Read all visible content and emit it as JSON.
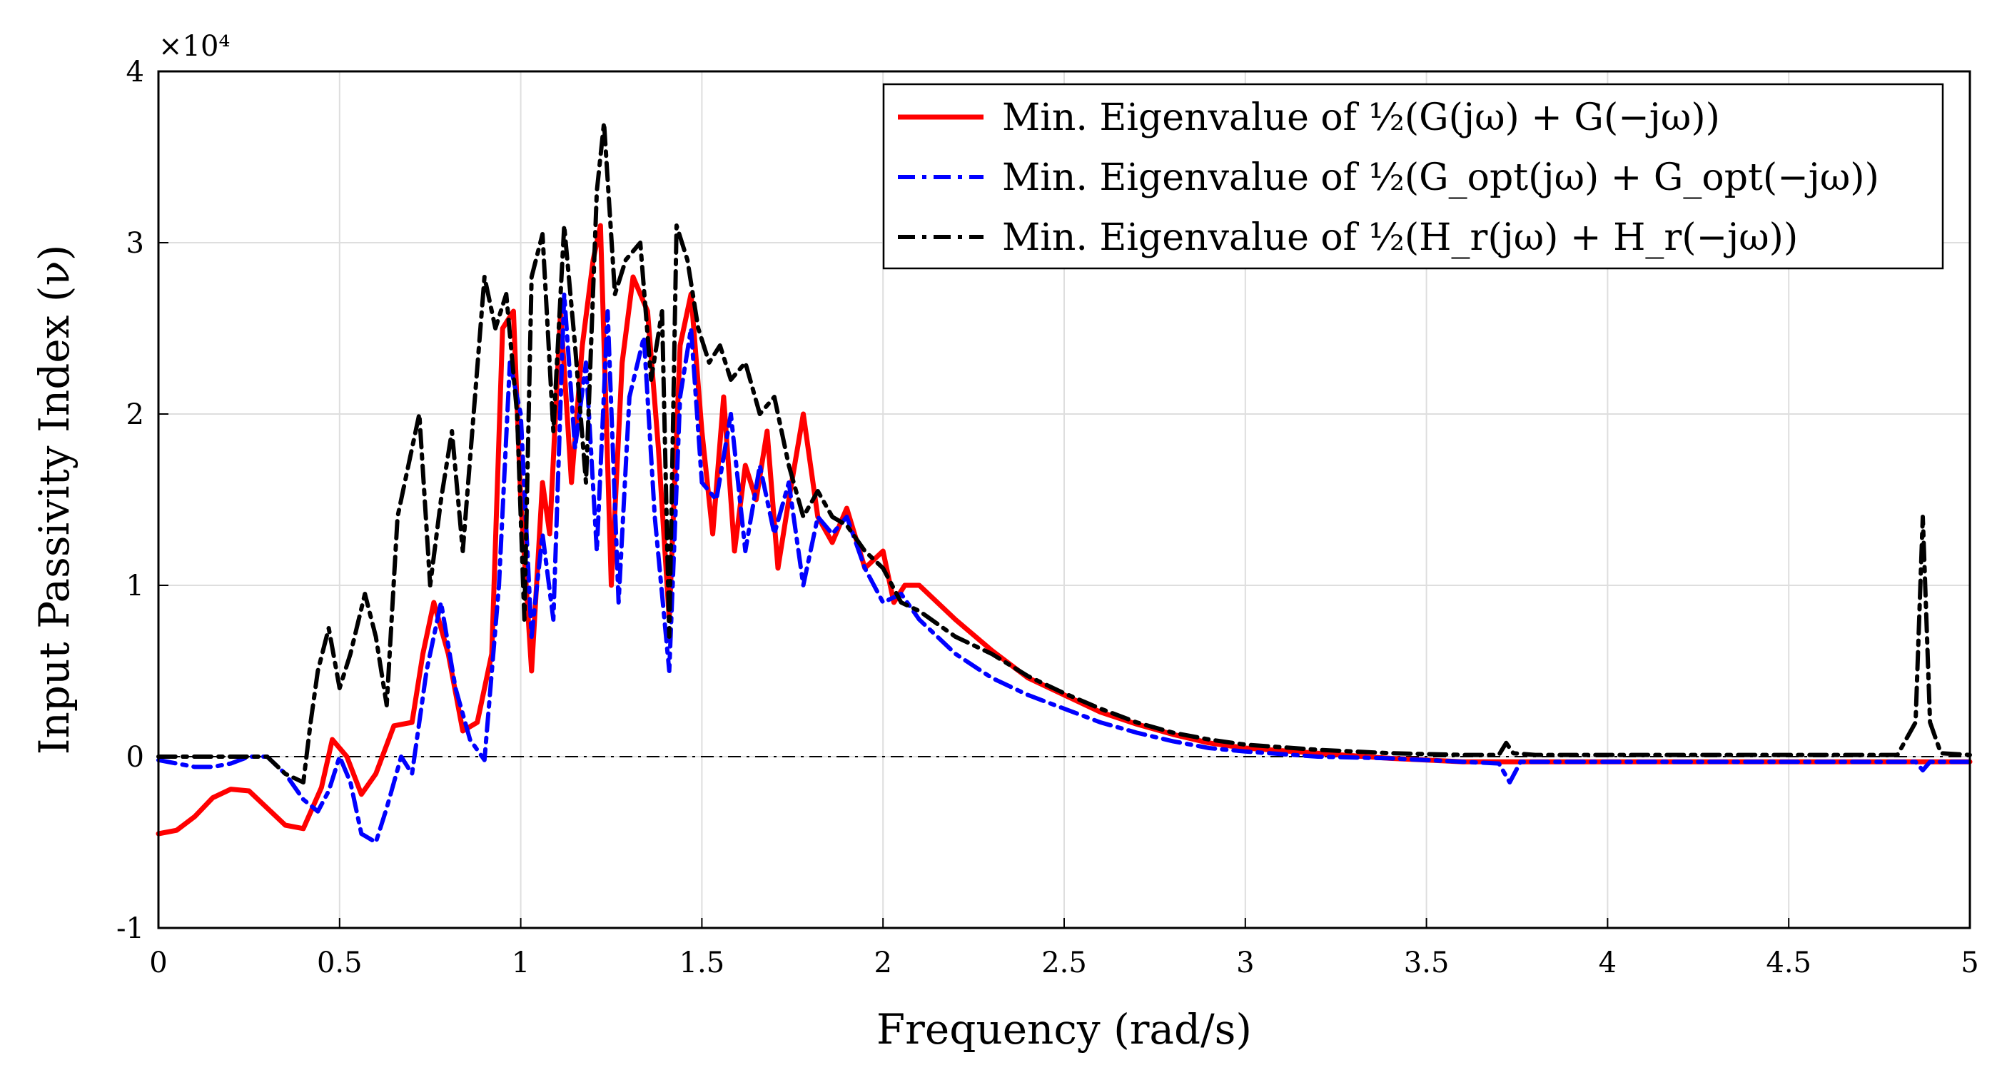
{
  "chart_data": {
    "type": "line",
    "xlabel": "Frequency (rad/s)",
    "ylabel": "Input Passivity Index (ν)",
    "y_multiplier": "×10⁴",
    "xlim": [
      0,
      5
    ],
    "ylim": [
      -1,
      4
    ],
    "x_ticks": [
      0,
      0.5,
      1,
      1.5,
      2,
      2.5,
      3,
      3.5,
      4,
      4.5,
      5
    ],
    "x_tick_labels": [
      "0",
      "0.5",
      "1",
      "1.5",
      "2",
      "2.5",
      "3",
      "3.5",
      "4",
      "4.5",
      "5"
    ],
    "y_ticks": [
      -1,
      0,
      1,
      2,
      3,
      4
    ],
    "y_tick_labels": [
      "-1",
      "0",
      "1",
      "2",
      "3",
      "4"
    ],
    "grid": true,
    "legend_position": "top-right",
    "reference_line": {
      "y": 0,
      "style": "dash-dot",
      "color": "#000000"
    },
    "series": [
      {
        "name": "Min. Eigenvalue of ½(G(jω) + G(−jω))",
        "color": "#ff0000",
        "style": "solid",
        "x": [
          0,
          0.05,
          0.1,
          0.15,
          0.2,
          0.25,
          0.3,
          0.35,
          0.4,
          0.45,
          0.48,
          0.52,
          0.56,
          0.6,
          0.65,
          0.7,
          0.73,
          0.76,
          0.8,
          0.84,
          0.88,
          0.92,
          0.95,
          0.98,
          1.0,
          1.03,
          1.06,
          1.08,
          1.11,
          1.14,
          1.17,
          1.2,
          1.22,
          1.25,
          1.28,
          1.31,
          1.35,
          1.38,
          1.41,
          1.44,
          1.47,
          1.5,
          1.53,
          1.56,
          1.59,
          1.62,
          1.65,
          1.68,
          1.71,
          1.74,
          1.78,
          1.82,
          1.86,
          1.9,
          1.95,
          2.0,
          2.03,
          2.06,
          2.1,
          2.2,
          2.3,
          2.4,
          2.5,
          2.6,
          2.7,
          2.8,
          2.9,
          3.0,
          3.2,
          3.4,
          3.6,
          3.7,
          3.72,
          3.74,
          3.8,
          4.0,
          4.2,
          4.5,
          4.8,
          4.86,
          4.88,
          5.0
        ],
        "y": [
          -0.45,
          -0.43,
          -0.35,
          -0.24,
          -0.19,
          -0.2,
          -0.3,
          -0.4,
          -0.42,
          -0.18,
          0.1,
          0.0,
          -0.22,
          -0.1,
          0.18,
          0.2,
          0.6,
          0.9,
          0.6,
          0.15,
          0.2,
          0.6,
          2.5,
          2.6,
          1.5,
          0.5,
          1.6,
          1.3,
          2.6,
          1.6,
          2.4,
          2.9,
          3.1,
          1.0,
          2.3,
          2.8,
          2.6,
          1.8,
          0.8,
          2.4,
          2.7,
          1.9,
          1.3,
          2.1,
          1.2,
          1.7,
          1.5,
          1.9,
          1.1,
          1.5,
          2.0,
          1.4,
          1.25,
          1.45,
          1.1,
          1.2,
          0.9,
          1.0,
          1.0,
          0.8,
          0.62,
          0.46,
          0.36,
          0.26,
          0.19,
          0.13,
          0.08,
          0.05,
          0.02,
          -0.01,
          -0.03,
          -0.03,
          -0.03,
          -0.03,
          -0.03,
          -0.03,
          -0.03,
          -0.03,
          -0.03,
          -0.03,
          -0.03,
          -0.03
        ]
      },
      {
        "name": "Min. Eigenvalue of ½(G_opt(jω) + G_opt(−jω))",
        "color": "#0000ff",
        "style": "dash-dot",
        "x": [
          0,
          0.05,
          0.1,
          0.15,
          0.2,
          0.25,
          0.3,
          0.35,
          0.4,
          0.44,
          0.47,
          0.5,
          0.53,
          0.56,
          0.6,
          0.63,
          0.67,
          0.7,
          0.74,
          0.78,
          0.82,
          0.86,
          0.9,
          0.94,
          0.97,
          1.0,
          1.03,
          1.06,
          1.09,
          1.12,
          1.15,
          1.18,
          1.21,
          1.24,
          1.27,
          1.3,
          1.34,
          1.37,
          1.41,
          1.44,
          1.47,
          1.5,
          1.54,
          1.58,
          1.62,
          1.66,
          1.7,
          1.74,
          1.78,
          1.82,
          1.86,
          1.9,
          1.95,
          2.0,
          2.05,
          2.1,
          2.2,
          2.3,
          2.4,
          2.5,
          2.6,
          2.7,
          2.8,
          2.9,
          3.0,
          3.2,
          3.4,
          3.6,
          3.7,
          3.73,
          3.76,
          3.8,
          4.0,
          4.5,
          4.85,
          4.87,
          4.89,
          5.0
        ],
        "y": [
          -0.02,
          -0.04,
          -0.06,
          -0.06,
          -0.04,
          0.0,
          0.0,
          -0.1,
          -0.25,
          -0.32,
          -0.2,
          0.0,
          -0.15,
          -0.45,
          -0.5,
          -0.3,
          0.0,
          -0.1,
          0.5,
          0.9,
          0.4,
          0.1,
          -0.02,
          1.0,
          2.3,
          2.0,
          0.7,
          1.3,
          0.8,
          2.7,
          1.8,
          2.3,
          1.2,
          2.6,
          0.9,
          2.1,
          2.45,
          1.4,
          0.5,
          2.1,
          2.5,
          1.6,
          1.5,
          2.0,
          1.2,
          1.7,
          1.3,
          1.6,
          1.0,
          1.4,
          1.3,
          1.4,
          1.1,
          0.9,
          0.95,
          0.8,
          0.6,
          0.46,
          0.36,
          0.28,
          0.2,
          0.14,
          0.09,
          0.05,
          0.03,
          0.0,
          -0.01,
          -0.03,
          -0.04,
          -0.15,
          -0.03,
          -0.03,
          -0.03,
          -0.03,
          -0.03,
          -0.08,
          -0.03,
          -0.03
        ]
      },
      {
        "name": "Min. Eigenvalue of ½(H_r(jω) + H_r(−jω))",
        "color": "#000000",
        "style": "dash-dot",
        "x": [
          0,
          0.1,
          0.2,
          0.3,
          0.35,
          0.4,
          0.42,
          0.44,
          0.47,
          0.5,
          0.53,
          0.57,
          0.6,
          0.63,
          0.66,
          0.69,
          0.72,
          0.75,
          0.78,
          0.81,
          0.84,
          0.87,
          0.9,
          0.93,
          0.96,
          0.99,
          1.01,
          1.03,
          1.06,
          1.09,
          1.12,
          1.15,
          1.18,
          1.21,
          1.23,
          1.26,
          1.29,
          1.33,
          1.36,
          1.39,
          1.41,
          1.43,
          1.46,
          1.49,
          1.52,
          1.55,
          1.58,
          1.62,
          1.66,
          1.7,
          1.74,
          1.78,
          1.82,
          1.86,
          1.9,
          1.95,
          2.0,
          2.05,
          2.1,
          2.2,
          2.3,
          2.4,
          2.5,
          2.6,
          2.7,
          2.8,
          2.9,
          3.0,
          3.2,
          3.4,
          3.6,
          3.7,
          3.72,
          3.74,
          3.8,
          4.0,
          4.5,
          4.8,
          4.85,
          4.87,
          4.89,
          4.92,
          5.0
        ],
        "y": [
          0.0,
          0.0,
          0.0,
          0.0,
          -0.1,
          -0.15,
          0.2,
          0.5,
          0.75,
          0.4,
          0.6,
          0.95,
          0.7,
          0.3,
          1.4,
          1.7,
          2.0,
          1.0,
          1.5,
          1.9,
          1.2,
          2.0,
          2.8,
          2.5,
          2.7,
          2.0,
          0.8,
          2.8,
          3.05,
          1.9,
          3.1,
          2.4,
          1.6,
          3.3,
          3.7,
          2.7,
          2.9,
          3.0,
          2.2,
          2.6,
          0.7,
          3.1,
          2.9,
          2.5,
          2.3,
          2.4,
          2.2,
          2.3,
          2.0,
          2.1,
          1.7,
          1.4,
          1.55,
          1.4,
          1.35,
          1.2,
          1.1,
          0.9,
          0.85,
          0.7,
          0.6,
          0.47,
          0.37,
          0.28,
          0.2,
          0.14,
          0.1,
          0.07,
          0.04,
          0.02,
          0.01,
          0.01,
          0.08,
          0.02,
          0.01,
          0.01,
          0.01,
          0.01,
          0.2,
          1.4,
          0.2,
          0.02,
          0.01
        ]
      }
    ]
  }
}
